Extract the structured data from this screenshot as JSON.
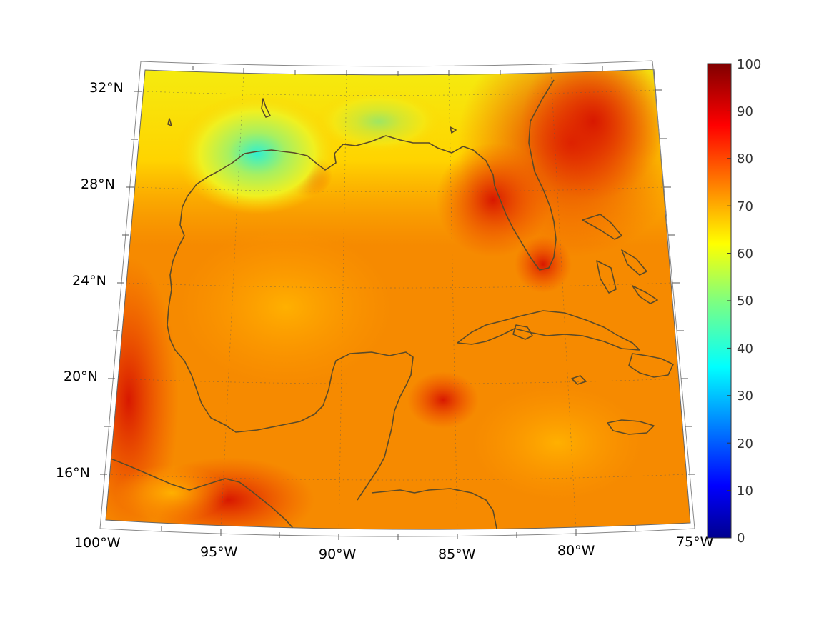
{
  "map": {
    "lon_labels": [
      "100°W",
      "95°W",
      "90°W",
      "85°W",
      "80°W",
      "75°W"
    ],
    "lat_labels": [
      "32°N",
      "28°N",
      "24°N",
      "20°N",
      "16°N"
    ]
  },
  "colorbar": {
    "ticks": [
      "100",
      "90",
      "80",
      "70",
      "60",
      "50",
      "40",
      "30",
      "20",
      "10",
      "0"
    ],
    "colormap": "jet",
    "range": [
      0,
      100
    ]
  }
}
